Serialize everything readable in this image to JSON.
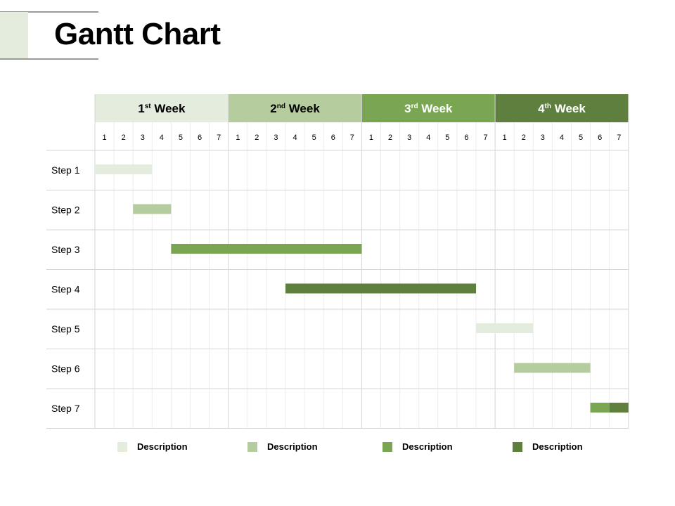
{
  "header": {
    "title": "Gantt Chart"
  },
  "chart_data": {
    "type": "gantt",
    "weeks": [
      {
        "num": "1",
        "sup": "st",
        "label": "Week",
        "color": "#e3ecdd",
        "text_color": "#000000"
      },
      {
        "num": "2",
        "sup": "nd",
        "label": "Week",
        "color": "#b4cc9e",
        "text_color": "#000000"
      },
      {
        "num": "3",
        "sup": "rd",
        "label": "Week",
        "color": "#7aa653",
        "text_color": "#ffffff"
      },
      {
        "num": "4",
        "sup": "th",
        "label": "Week",
        "color": "#5e7f3e",
        "text_color": "#ffffff"
      }
    ],
    "day_labels": [
      "1",
      "2",
      "3",
      "4",
      "5",
      "6",
      "7"
    ],
    "tasks": [
      {
        "label": "Step 1",
        "segments": [
          {
            "start": 0,
            "end": 3,
            "color": "#e3ecdd"
          }
        ]
      },
      {
        "label": "Step 2",
        "segments": [
          {
            "start": 2,
            "end": 4,
            "color": "#b4cc9e"
          }
        ]
      },
      {
        "label": "Step 3",
        "segments": [
          {
            "start": 4,
            "end": 14,
            "color": "#7aa653"
          }
        ]
      },
      {
        "label": "Step 4",
        "segments": [
          {
            "start": 10,
            "end": 20,
            "color": "#5e7f3e"
          }
        ]
      },
      {
        "label": "Step 5",
        "segments": [
          {
            "start": 20,
            "end": 23,
            "color": "#e3ecdd"
          }
        ]
      },
      {
        "label": "Step 6",
        "segments": [
          {
            "start": 22,
            "end": 26,
            "color": "#b4cc9e"
          }
        ]
      },
      {
        "label": "Step 7",
        "segments": [
          {
            "start": 26,
            "end": 27,
            "color": "#7aa653"
          },
          {
            "start": 27,
            "end": 28,
            "color": "#5e7f3e"
          }
        ]
      }
    ],
    "legend": [
      {
        "label": "Description",
        "color": "#e3ecdd"
      },
      {
        "label": "Description",
        "color": "#b4cc9e"
      },
      {
        "label": "Description",
        "color": "#7aa653"
      },
      {
        "label": "Description",
        "color": "#5e7f3e"
      }
    ]
  }
}
